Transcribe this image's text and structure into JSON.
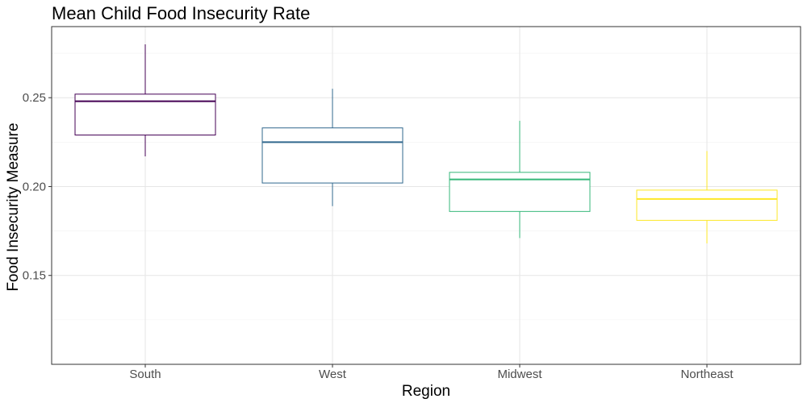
{
  "chart_data": {
    "type": "box",
    "title": "Mean Child Food Insecurity Rate",
    "xlabel": "Region",
    "ylabel": "Food Insecurity Measure",
    "ylim": [
      0.1,
      0.29
    ],
    "yticks": [
      0.15,
      0.2,
      0.25
    ],
    "ytick_labels": [
      "0.15",
      "0.20",
      "0.25"
    ],
    "grid": true,
    "legend": "none",
    "categories": [
      "South",
      "West",
      "Midwest",
      "Northeast"
    ],
    "boxes": [
      {
        "category": "South",
        "color": "#440154",
        "whisker_low": 0.217,
        "q1": 0.229,
        "median": 0.248,
        "q3": 0.252,
        "whisker_high": 0.28
      },
      {
        "category": "West",
        "color": "#31688e",
        "whisker_low": 0.189,
        "q1": 0.202,
        "median": 0.225,
        "q3": 0.233,
        "whisker_high": 0.255
      },
      {
        "category": "Midwest",
        "color": "#35b779",
        "whisker_low": 0.171,
        "q1": 0.186,
        "median": 0.204,
        "q3": 0.208,
        "whisker_high": 0.237
      },
      {
        "category": "Northeast",
        "color": "#fde725",
        "whisker_low": 0.168,
        "q1": 0.181,
        "median": 0.193,
        "q3": 0.198,
        "whisker_high": 0.22
      }
    ]
  }
}
